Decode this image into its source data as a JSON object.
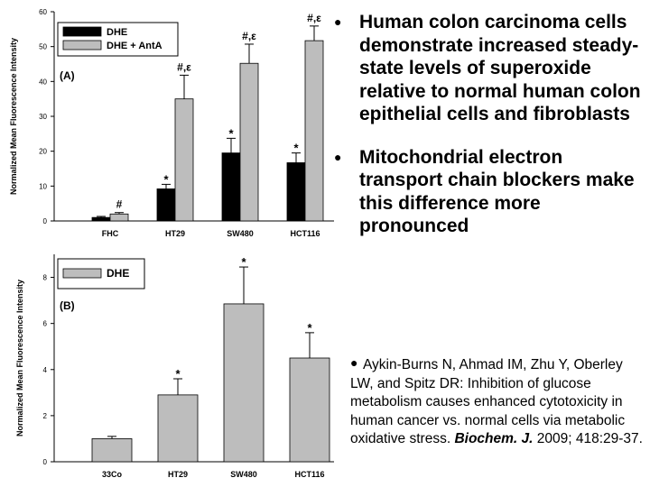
{
  "chart_data": [
    {
      "panel_label": "(A)",
      "type": "bar",
      "ylabel": "Normalized Mean Fluorescence Intensity",
      "ylim": [
        0,
        60
      ],
      "yticks": [
        0,
        10,
        20,
        30,
        40,
        50,
        60
      ],
      "categories": [
        "FHC",
        "HT29",
        "SW480",
        "HCT116"
      ],
      "series": [
        {
          "name": "DHE",
          "color": "#000000",
          "values": [
            1,
            9.2,
            19.5,
            16.7
          ],
          "errors": [
            0.3,
            1.3,
            4.2,
            2.8
          ],
          "annotations": [
            "",
            "*",
            "*",
            "*"
          ]
        },
        {
          "name": "DHE + AntA",
          "color": "#bdbdbd",
          "values": [
            2,
            35,
            45.2,
            51.7
          ],
          "errors": [
            0.4,
            6.8,
            5.5,
            4.2
          ],
          "annotations": [
            "#",
            "#,ε",
            "#,ε",
            "#,ε"
          ]
        }
      ],
      "legend_position": "top-left"
    },
    {
      "panel_label": "(B)",
      "type": "bar",
      "ylabel": "Normalized Mean Fluorescence Intensity",
      "ylim": [
        0,
        9
      ],
      "yticks": [
        0,
        2,
        4,
        6,
        8
      ],
      "categories": [
        "33Co",
        "HT29",
        "SW480",
        "HCT116"
      ],
      "series": [
        {
          "name": "DHE",
          "color": "#bdbdbd",
          "values": [
            1,
            2.9,
            6.85,
            4.5
          ],
          "errors": [
            0.1,
            0.7,
            1.6,
            1.1
          ],
          "annotations": [
            "",
            "*",
            "*",
            "*"
          ]
        }
      ],
      "legend_position": "top-left"
    }
  ],
  "bullets": [
    "Human colon carcinoma cells demonstrate increased steady-state levels of superoxide relative to normal human colon epithelial cells and fibroblasts",
    "Mitochondrial electron transport chain blockers make this difference more pronounced"
  ],
  "reference": {
    "text": "Aykin-Burns N, Ahmad IM, Zhu Y, Oberley LW, and Spitz DR: Inhibition of glucose metabolism causes enhanced cytotoxicity in human cancer vs. normal cells via metabolic oxidative stress.",
    "journal": "Biochem. J.",
    "citation": "2009; 418:29-37."
  },
  "bullet_symbol": "●"
}
